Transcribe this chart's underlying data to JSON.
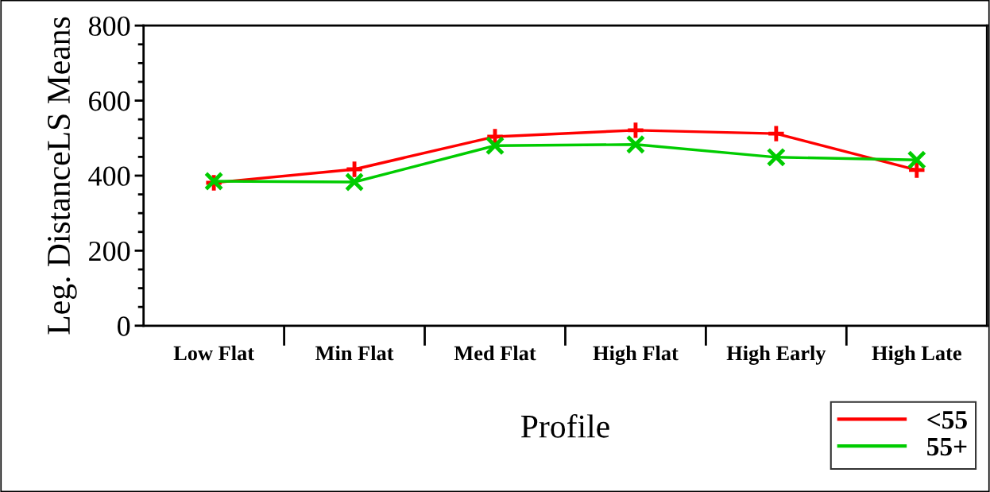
{
  "chart_data": {
    "type": "line",
    "xlabel": "Profile",
    "ylabel": "Leg. DistanceLS Means",
    "categories": [
      "Low Flat",
      "Min Flat",
      "Med Flat",
      "High Flat",
      "High Early",
      "High Late"
    ],
    "series": [
      {
        "name": "<55",
        "color": "#ff0000",
        "marker": "plus",
        "values": [
          381,
          417,
          504,
          521,
          512,
          415
        ]
      },
      {
        "name": "55+",
        "color": "#00cc00",
        "marker": "cross",
        "values": [
          385,
          383,
          480,
          483,
          449,
          442
        ]
      }
    ],
    "ylim": [
      0,
      800
    ],
    "yticks": [
      0,
      200,
      400,
      600,
      800
    ],
    "grid": false,
    "legend": "bottom right",
    "line_style": "solid"
  }
}
